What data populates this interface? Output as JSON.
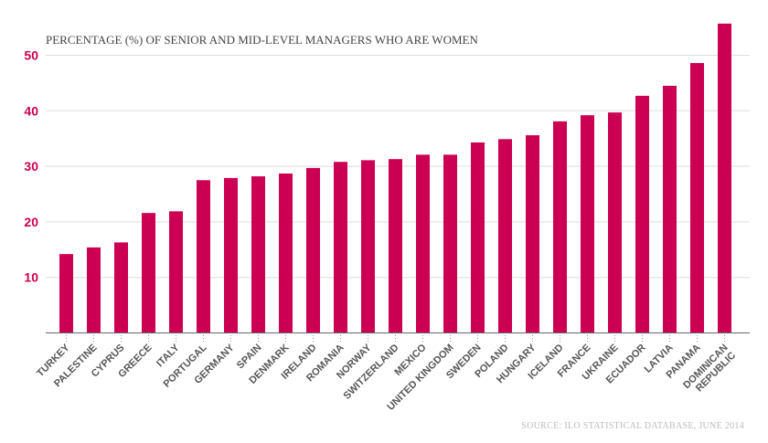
{
  "chart_data": {
    "type": "bar",
    "title": "PERCENTAGE (%) OF SENIOR AND MID-LEVEL MANAGERS WHO ARE WOMEN",
    "source": "SOURCE: ILO STATISTICAL DATABASE, JUNE 2014",
    "categories": [
      "TURKEY",
      "PALESTINE",
      "CYPRUS",
      "GREECE",
      "ITALY",
      "PORTUGAL",
      "GERMANY",
      "SPAIN",
      "DENMARK",
      "IRELAND",
      "ROMANIA",
      "NORWAY",
      "SWITZERLAND",
      "MEXICO",
      "UNITED KINGDOM",
      "SWEDEN",
      "POLAND",
      "HUNGARY",
      "ICELAND",
      "FRANCE",
      "UKRAINE",
      "ECUADOR",
      "LATVIA",
      "PANAMA",
      "DOMINICAN REPUBLIC"
    ],
    "values": [
      14.2,
      15.4,
      16.3,
      21.6,
      21.9,
      27.5,
      27.9,
      28.2,
      28.7,
      29.7,
      30.8,
      31.1,
      31.3,
      32.1,
      32.1,
      34.3,
      34.9,
      35.6,
      38.1,
      39.2,
      39.7,
      42.7,
      44.5,
      48.6,
      55.7
    ],
    "yticks": [
      10,
      20,
      30,
      40,
      50
    ],
    "ylim": [
      0,
      55.7
    ],
    "grid": true,
    "xlabel": "",
    "ylabel": "",
    "colors": {
      "bar": "#cc0052",
      "ytick": "#cc0052",
      "grid": "#dddddd",
      "axis": "#666666"
    }
  }
}
